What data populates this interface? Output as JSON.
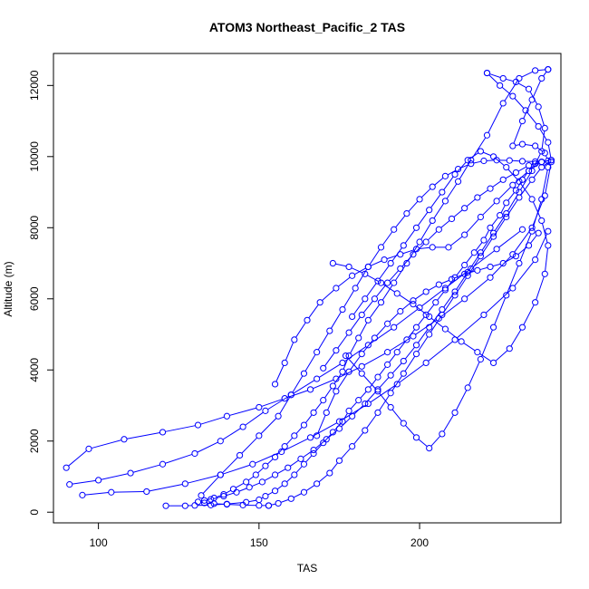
{
  "chart_data": {
    "type": "line",
    "title": "ATOM3 Northeast_Pacific_2 TAS",
    "xlabel": "TAS",
    "ylabel": "Altitude (m)",
    "xlim": [
      86,
      244
    ],
    "ylim": [
      -300,
      12900
    ],
    "x_ticks": [
      100,
      150,
      200
    ],
    "y_ticks": [
      0,
      2000,
      4000,
      6000,
      8000,
      10000,
      12000
    ],
    "grid": false,
    "series_color": "#0000ff",
    "marker": "open-circle",
    "series": [
      {
        "x": [
          121,
          127,
          130,
          135,
          140,
          146,
          150,
          152,
          155,
          158,
          161,
          164,
          167,
          170,
          173,
          176,
          178,
          181,
          184,
          187,
          190,
          193,
          196,
          199,
          202,
          205,
          208,
          211,
          214,
          217,
          220,
          222,
          225,
          227,
          230,
          232,
          234,
          236,
          238,
          240,
          239,
          236,
          232,
          229,
          232,
          235,
          238,
          240
        ],
        "y": [
          180,
          180,
          190,
          200,
          230,
          280,
          350,
          450,
          600,
          800,
          1050,
          1350,
          1650,
          1950,
          2250,
          2550,
          2850,
          3150,
          3450,
          3800,
          4150,
          4500,
          4850,
          5200,
          5550,
          5900,
          6250,
          6600,
          6950,
          7300,
          7650,
          8000,
          8350,
          8700,
          9050,
          9350,
          9600,
          9800,
          9850,
          9880,
          10100,
          10300,
          10350,
          10300,
          11000,
          11600,
          12200,
          12450
        ]
      },
      {
        "x": [
          240,
          236,
          231,
          226,
          221,
          216,
          212,
          208,
          204,
          200,
          196,
          192,
          188,
          184,
          181,
          178,
          176,
          173,
          170,
          167,
          164,
          161,
          158,
          155,
          152,
          149,
          146,
          142,
          139,
          136,
          133,
          131,
          133,
          136,
          140,
          145,
          150,
          153
        ],
        "y": [
          12450,
          12420,
          12200,
          11500,
          10600,
          9900,
          9300,
          8750,
          8200,
          7600,
          7000,
          6450,
          5900,
          5400,
          4900,
          4400,
          3950,
          3550,
          3150,
          2800,
          2450,
          2150,
          1850,
          1550,
          1300,
          1050,
          850,
          650,
          500,
          400,
          330,
          290,
          260,
          240,
          220,
          200,
          190,
          185
        ]
      },
      {
        "x": [
          153,
          156,
          160,
          164,
          168,
          172,
          175,
          179,
          183,
          187,
          191,
          195,
          199,
          203,
          207,
          211,
          215,
          219,
          223,
          227,
          231,
          235,
          238,
          241,
          240,
          237,
          233,
          229,
          225,
          221
        ],
        "y": [
          185,
          250,
          380,
          560,
          800,
          1100,
          1450,
          1850,
          2300,
          2800,
          3350,
          3900,
          4450,
          5000,
          5550,
          6100,
          6650,
          7200,
          7750,
          8300,
          8850,
          9350,
          9700,
          9900,
          10400,
          10850,
          11300,
          11700,
          12000,
          12350
        ]
      },
      {
        "x": [
          221,
          226,
          230,
          234,
          237,
          239,
          238,
          235,
          231,
          227,
          223,
          219,
          215,
          211,
          207,
          203,
          199,
          195,
          191,
          187,
          183,
          179,
          175,
          171,
          167,
          163,
          159,
          155,
          151,
          147,
          143,
          139,
          135
        ],
        "y": [
          12350,
          12200,
          12100,
          11900,
          11400,
          10800,
          10150,
          9600,
          9000,
          8400,
          7850,
          7300,
          6750,
          6200,
          5700,
          5200,
          4700,
          4250,
          3850,
          3450,
          3050,
          2700,
          2350,
          2050,
          1750,
          1500,
          1250,
          1050,
          850,
          700,
          560,
          450,
          360
        ]
      },
      {
        "x": [
          90,
          97,
          108,
          120,
          131,
          140,
          150,
          158,
          166,
          174,
          182,
          190,
          198,
          206,
          214,
          222,
          229,
          235,
          239,
          241
        ],
        "y": [
          1250,
          1780,
          2050,
          2250,
          2450,
          2700,
          2950,
          3200,
          3450,
          3750,
          4100,
          4500,
          4950,
          5450,
          6000,
          6600,
          7250,
          8000,
          8900,
          9850
        ]
      },
      {
        "x": [
          91,
          100,
          110,
          120,
          130,
          138,
          145,
          152,
          160,
          168,
          176,
          184,
          192,
          200,
          208,
          216,
          224,
          232
        ],
        "y": [
          780,
          900,
          1100,
          1350,
          1650,
          2000,
          2400,
          2850,
          3300,
          3750,
          4200,
          4700,
          5200,
          5750,
          6300,
          6850,
          7400,
          7950
        ]
      },
      {
        "x": [
          95,
          104,
          115,
          127,
          138,
          148,
          157,
          166,
          175,
          184,
          193,
          202,
          211,
          220,
          229,
          236,
          240
        ],
        "y": [
          480,
          560,
          580,
          800,
          1050,
          1350,
          1700,
          2100,
          2550,
          3050,
          3600,
          4200,
          4850,
          5550,
          6300,
          7100,
          7900
        ]
      },
      {
        "x": [
          132,
          138,
          144,
          150,
          156,
          160,
          164,
          168,
          172,
          176,
          180,
          184,
          188,
          192,
          196,
          200,
          204,
          208,
          212,
          216,
          220,
          224,
          228,
          232,
          236
        ],
        "y": [
          470,
          1050,
          1600,
          2150,
          2700,
          3300,
          3900,
          4500,
          5100,
          5700,
          6300,
          6900,
          7450,
          7950,
          8400,
          8800,
          9150,
          9450,
          9650,
          9800,
          9880,
          9900,
          9890,
          9870,
          9860
        ]
      },
      {
        "x": [
          155,
          158,
          161,
          165,
          169,
          174,
          179,
          184,
          189,
          194,
          199,
          204,
          209,
          214,
          219,
          224,
          229,
          234,
          238,
          241,
          238,
          234,
          230,
          226,
          222,
          218,
          214,
          210,
          206,
          202,
          198,
          194,
          190,
          186,
          182,
          178,
          174,
          170
        ],
        "y": [
          3600,
          4200,
          4850,
          5400,
          5900,
          6300,
          6650,
          6900,
          7100,
          7250,
          7400,
          7450,
          7450,
          7800,
          8300,
          8750,
          9200,
          9600,
          9850,
          9900,
          9850,
          9750,
          9550,
          9350,
          9100,
          8850,
          8550,
          8250,
          7950,
          7600,
          7250,
          6850,
          6450,
          6000,
          5550,
          5050,
          4550,
          4050
        ]
      },
      {
        "x": [
          173,
          178,
          183,
          188,
          193,
          198,
          203,
          208,
          213,
          218,
          223,
          228,
          232,
          236,
          239,
          240,
          238,
          235,
          231,
          227,
          223,
          219,
          215,
          211,
          207,
          203,
          199,
          195,
          191,
          187,
          183,
          179
        ],
        "y": [
          7000,
          6900,
          6700,
          6450,
          6150,
          5850,
          5500,
          5150,
          4800,
          4500,
          4200,
          4600,
          5200,
          5900,
          6700,
          7500,
          8200,
          8800,
          9300,
          9700,
          10000,
          10150,
          9900,
          9500,
          9000,
          8500,
          8000,
          7500,
          7000,
          6500,
          6000,
          5500
        ]
      },
      {
        "x": [
          177,
          182,
          187,
          191,
          195,
          199,
          203,
          207,
          211,
          215,
          219,
          223,
          227,
          231,
          235,
          238,
          240
        ],
        "y": [
          4400,
          3900,
          3400,
          2950,
          2500,
          2100,
          1800,
          2200,
          2800,
          3500,
          4300,
          5200,
          6100,
          7000,
          7900,
          8800,
          9700
        ]
      },
      {
        "x": [
          168,
          171,
          174,
          178,
          182,
          186,
          190,
          194,
          198,
          202,
          206,
          210,
          214,
          218,
          222,
          226,
          230,
          234,
          237
        ],
        "y": [
          2150,
          2800,
          3400,
          3950,
          4450,
          4900,
          5300,
          5650,
          5950,
          6200,
          6400,
          6550,
          6700,
          6800,
          6900,
          7000,
          7200,
          7500,
          7850
        ]
      }
    ]
  }
}
